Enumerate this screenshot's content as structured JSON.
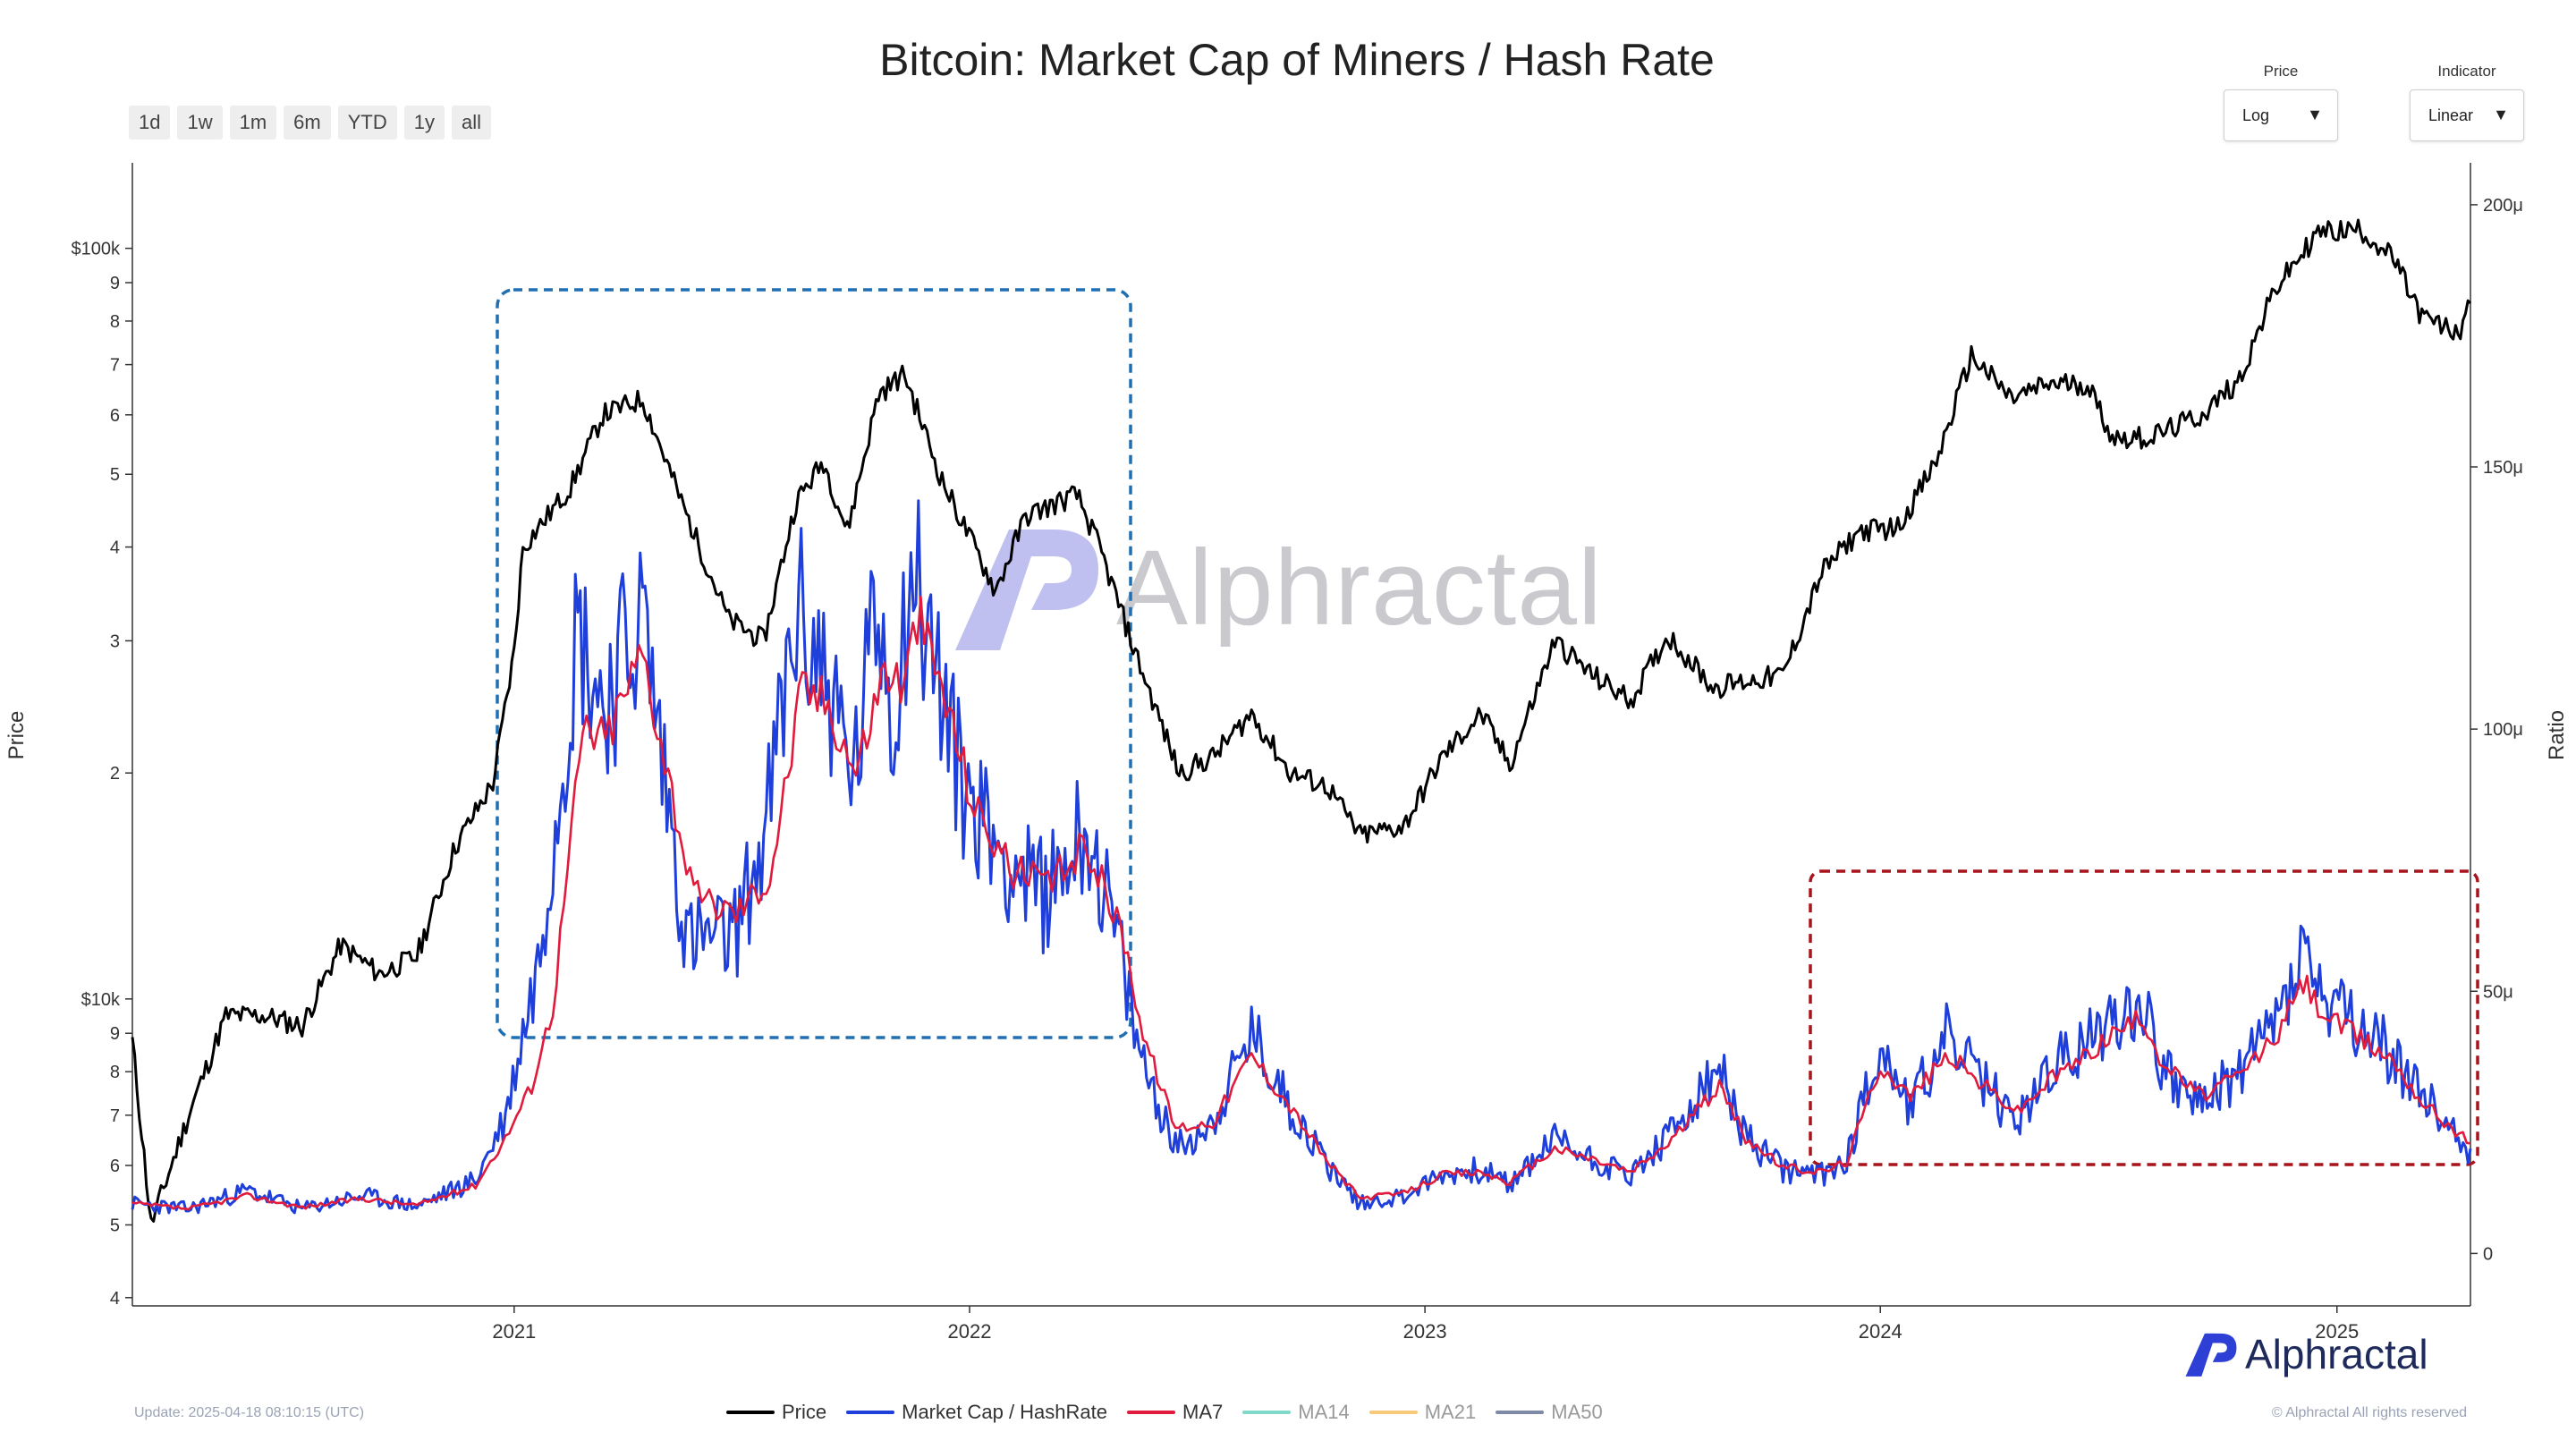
{
  "title": "Bitcoin: Market Cap of Miners / Hash Rate",
  "range_buttons": [
    "1d",
    "1w",
    "1m",
    "6m",
    "YTD",
    "1y",
    "all"
  ],
  "controls": {
    "price": {
      "label": "Price",
      "value": "Log"
    },
    "indicator": {
      "label": "Indicator",
      "value": "Linear"
    }
  },
  "footer": {
    "update": "Update: 2025-04-18 08:10:15 (UTC)",
    "copyright": "© Alphractal All rights reserved"
  },
  "watermark": "Alphractal",
  "logo": "Alphractal",
  "colors": {
    "price": "#000000",
    "ratio": "#1f3fdb",
    "ma7": "#e01b3c",
    "ma14": "#7fd8c8",
    "ma21": "#f7c978",
    "ma50": "#7d8aa8",
    "highlight_blue": "#1f6fb3",
    "highlight_red": "#a8141c"
  },
  "legend": [
    {
      "name": "Price",
      "color": "#000000",
      "active": true
    },
    {
      "name": "Market Cap / HashRate",
      "color": "#1f3fdb",
      "active": true
    },
    {
      "name": "MA7",
      "color": "#e01b3c",
      "active": true
    },
    {
      "name": "MA14",
      "color": "#7fd8c8",
      "active": false
    },
    {
      "name": "MA21",
      "color": "#f7c978",
      "active": false
    },
    {
      "name": "MA50",
      "color": "#7d8aa8",
      "active": false
    }
  ],
  "chart_data": {
    "type": "line",
    "title": "Bitcoin: Market Cap of Miners / Hash Rate",
    "ylabel_left": "Price",
    "ylabel_right": "Ratio",
    "y_left_scale": "log",
    "y_left_ticks": [
      "4",
      "5",
      "6",
      "7",
      "8",
      "9",
      "$10k",
      "2",
      "3",
      "4",
      "5",
      "6",
      "7",
      "8",
      "9",
      "$100k"
    ],
    "y_left_tick_values": [
      4000,
      5000,
      6000,
      7000,
      8000,
      9000,
      10000,
      20000,
      30000,
      40000,
      50000,
      60000,
      70000,
      80000,
      90000,
      100000
    ],
    "y_left_range": [
      3900,
      130000
    ],
    "y_right_scale": "linear",
    "y_right_ticks": [
      "0",
      "50μ",
      "100μ",
      "150μ",
      "200μ"
    ],
    "y_right_tick_values": [
      0,
      5e-05,
      0.0001,
      0.00015,
      0.0002
    ],
    "y_right_range": [
      -1e-05,
      0.000208
    ],
    "x_range": [
      "2020-03-01",
      "2025-04-18"
    ],
    "x_ticks": [
      "2021",
      "2022",
      "2023",
      "2024",
      "2025"
    ],
    "x_tick_values": [
      "2021-01-01",
      "2022-01-01",
      "2023-01-01",
      "2024-01-01",
      "2025-01-01"
    ],
    "series": [
      {
        "name": "Price",
        "axis": "left",
        "x": [
          "2020-03-01",
          "2020-03-16",
          "2020-04-15",
          "2020-05-15",
          "2020-06-15",
          "2020-07-15",
          "2020-08-15",
          "2020-09-15",
          "2020-10-15",
          "2020-11-15",
          "2020-12-15",
          "2021-01-01",
          "2021-01-08",
          "2021-02-15",
          "2021-03-13",
          "2021-04-14",
          "2021-05-15",
          "2021-06-22",
          "2021-07-20",
          "2021-08-15",
          "2021-09-06",
          "2021-09-25",
          "2021-10-20",
          "2021-11-10",
          "2021-12-10",
          "2022-01-22",
          "2022-02-15",
          "2022-03-28",
          "2022-04-15",
          "2022-05-12",
          "2022-06-18",
          "2022-07-15",
          "2022-08-15",
          "2022-09-15",
          "2022-10-15",
          "2022-11-10",
          "2022-12-15",
          "2023-01-15",
          "2023-02-15",
          "2023-03-10",
          "2023-04-15",
          "2023-05-15",
          "2023-06-15",
          "2023-07-15",
          "2023-08-20",
          "2023-09-15",
          "2023-10-15",
          "2023-11-15",
          "2023-12-15",
          "2024-01-15",
          "2024-02-15",
          "2024-03-14",
          "2024-04-15",
          "2024-05-15",
          "2024-06-15",
          "2024-07-05",
          "2024-08-05",
          "2024-09-15",
          "2024-10-15",
          "2024-11-12",
          "2024-12-17",
          "2025-01-20",
          "2025-02-15",
          "2025-03-10",
          "2025-04-08",
          "2025-04-18"
        ],
        "values": [
          8800,
          5000,
          7000,
          9500,
          9500,
          9200,
          11800,
          10800,
          11400,
          16000,
          19400,
          29000,
          40000,
          48000,
          60000,
          63000,
          46000,
          32000,
          30000,
          46000,
          52000,
          42000,
          64000,
          68000,
          49000,
          35000,
          44000,
          47000,
          40000,
          29500,
          20000,
          21000,
          24000,
          20000,
          19200,
          16500,
          17000,
          21000,
          24000,
          20500,
          30000,
          27000,
          25000,
          30500,
          26000,
          26500,
          27000,
          37000,
          42000,
          42500,
          52000,
          72000,
          63000,
          66000,
          66000,
          56000,
          56000,
          60000,
          67000,
          88000,
          105000,
          106000,
          97000,
          81000,
          77000,
          84500
        ]
      },
      {
        "name": "Market Cap / HashRate",
        "axis": "right",
        "x": [
          "2020-03-01",
          "2020-04-15",
          "2020-06-01",
          "2020-07-15",
          "2020-09-01",
          "2020-10-15",
          "2020-12-01",
          "2020-12-25",
          "2021-01-08",
          "2021-01-20",
          "2021-02-21",
          "2021-03-13",
          "2021-04-14",
          "2021-05-19",
          "2021-06-25",
          "2021-07-20",
          "2021-08-15",
          "2021-09-06",
          "2021-09-30",
          "2021-10-20",
          "2021-11-01",
          "2021-11-15",
          "2021-12-05",
          "2021-12-25",
          "2022-02-01",
          "2022-03-01",
          "2022-04-05",
          "2022-05-01",
          "2022-05-15",
          "2022-06-15",
          "2022-07-15",
          "2022-08-15",
          "2022-09-15",
          "2022-10-15",
          "2022-11-10",
          "2022-12-15",
          "2023-01-15",
          "2023-02-15",
          "2023-03-10",
          "2023-04-15",
          "2023-05-15",
          "2023-06-15",
          "2023-07-15",
          "2023-08-25",
          "2023-09-15",
          "2023-10-15",
          "2023-11-15",
          "2023-12-05",
          "2024-01-01",
          "2024-01-25",
          "2024-02-25",
          "2024-03-14",
          "2024-04-20",
          "2024-05-15",
          "2024-06-15",
          "2024-07-05",
          "2024-07-30",
          "2024-08-15",
          "2024-09-15",
          "2024-10-15",
          "2024-11-15",
          "2024-12-05",
          "2024-12-20",
          "2025-01-20",
          "2025-02-15",
          "2025-03-10",
          "2025-04-18"
        ],
        "values": [
          9.5e-06,
          8.5e-06,
          1.2e-05,
          8.5e-06,
          1.1e-05,
          9e-06,
          1.4e-05,
          2.6e-05,
          4.2e-05,
          5.5e-05,
          0.00012,
          0.000105,
          0.000122,
          6e-05,
          6e-05,
          7.8e-05,
          0.000122,
          0.000112,
          9e-05,
          0.000125,
          0.000102,
          0.000132,
          0.000112,
          9e-05,
          7.5e-05,
          6.8e-05,
          8.2e-05,
          5.8e-05,
          4e-05,
          2e-05,
          2.5e-05,
          4.2e-05,
          2.8e-05,
          1.7e-05,
          9.5e-06,
          1.1e-05,
          1.5e-05,
          1.6e-05,
          1.3e-05,
          2.2e-05,
          1.8e-05,
          1.5e-05,
          2.2e-05,
          3.5e-05,
          2.2e-05,
          1.6e-05,
          1.5e-05,
          1.8e-05,
          4e-05,
          2.8e-05,
          4.2e-05,
          3.5e-05,
          2.5e-05,
          3.5e-05,
          4e-05,
          4.5e-05,
          4.8e-05,
          3.5e-05,
          2.8e-05,
          3.5e-05,
          4.5e-05,
          5.8e-05,
          4.8e-05,
          4.2e-05,
          3.8e-05,
          3e-05,
          2e-05
        ]
      },
      {
        "name": "MA7",
        "axis": "right",
        "x": [
          "2020-03-01",
          "2020-04-15",
          "2020-06-01",
          "2020-07-15",
          "2020-09-01",
          "2020-10-15",
          "2020-12-01",
          "2020-12-25",
          "2021-01-15",
          "2021-02-01",
          "2021-02-25",
          "2021-03-15",
          "2021-04-14",
          "2021-05-25",
          "2021-06-28",
          "2021-07-25",
          "2021-08-20",
          "2021-09-10",
          "2021-10-02",
          "2021-10-25",
          "2021-11-10",
          "2021-11-20",
          "2021-12-10",
          "2022-01-05",
          "2022-02-05",
          "2022-03-05",
          "2022-04-05",
          "2022-05-05",
          "2022-05-20",
          "2022-06-15",
          "2022-07-15",
          "2022-08-15",
          "2022-09-15",
          "2022-10-15",
          "2022-11-10",
          "2022-12-15",
          "2023-01-15",
          "2023-02-15",
          "2023-03-10",
          "2023-04-15",
          "2023-05-15",
          "2023-06-15",
          "2023-07-15",
          "2023-08-25",
          "2023-09-15",
          "2023-10-15",
          "2023-11-15",
          "2023-12-05",
          "2024-01-01",
          "2024-01-25",
          "2024-02-25",
          "2024-03-14",
          "2024-04-20",
          "2024-05-15",
          "2024-06-15",
          "2024-07-05",
          "2024-07-30",
          "2024-08-15",
          "2024-09-15",
          "2024-10-15",
          "2024-11-15",
          "2024-12-05",
          "2024-12-20",
          "2025-01-20",
          "2025-02-15",
          "2025-03-10",
          "2025-04-18"
        ],
        "values": [
          9.5e-06,
          8.5e-06,
          1.1e-05,
          8.8e-06,
          1.05e-05,
          9.2e-06,
          1.3e-05,
          2.2e-05,
          3.2e-05,
          4.7e-05,
          0.0001,
          9.8e-05,
          0.000115,
          6.8e-05,
          6.5e-05,
          7.2e-05,
          0.000108,
          0.000105,
          9.2e-05,
          0.000112,
          0.000108,
          0.000122,
          0.000108,
          8.5e-05,
          7.3e-05,
          7e-05,
          7.8e-05,
          6e-05,
          4.2e-05,
          2.4e-05,
          2.5e-05,
          3.8e-05,
          2.8e-05,
          1.75e-05,
          1.05e-05,
          1.15e-05,
          1.5e-05,
          1.55e-05,
          1.35e-05,
          2e-05,
          1.8e-05,
          1.55e-05,
          2.1e-05,
          3.2e-05,
          2.2e-05,
          1.65e-05,
          1.55e-05,
          1.75e-05,
          3.6e-05,
          3e-05,
          3.8e-05,
          3.4e-05,
          2.7e-05,
          3.3e-05,
          3.8e-05,
          4.2e-05,
          4.5e-05,
          3.6e-05,
          3e-05,
          3.4e-05,
          4.2e-05,
          5.2e-05,
          4.6e-05,
          4.1e-05,
          3.7e-05,
          2.9e-05,
          2.1e-05
        ]
      }
    ]
  }
}
